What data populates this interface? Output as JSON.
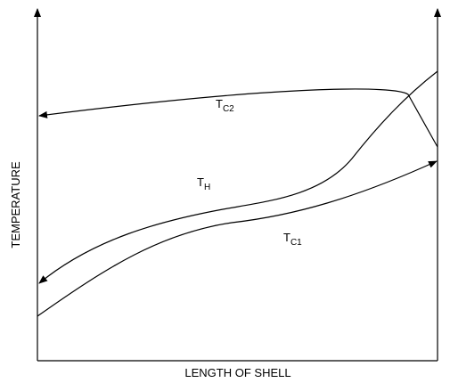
{
  "axes": {
    "x_label": "LENGTH OF SHELL",
    "y_label": "TEMPERATURE"
  },
  "curves": [
    {
      "main": "T",
      "sub": "C2"
    },
    {
      "main": "T",
      "sub": "H"
    },
    {
      "main": "T",
      "sub": "C1"
    }
  ]
}
